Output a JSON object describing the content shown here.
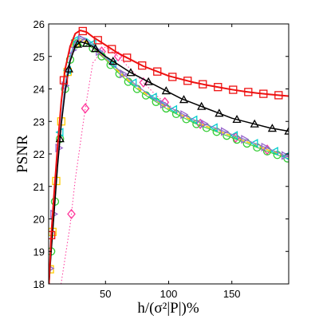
{
  "chart_data": {
    "type": "line",
    "title": "",
    "xlabel": "h/(σ²|P|)%",
    "ylabel": "PSNR",
    "xlim": [
      5,
      195
    ],
    "ylim": [
      18,
      26
    ],
    "xticks": [
      50,
      100,
      150
    ],
    "yticks": [
      18,
      19,
      20,
      21,
      22,
      23,
      24,
      25,
      26
    ],
    "grid": false,
    "legend": "none",
    "series": [
      {
        "color": "#ff3399",
        "marker": "diamond",
        "line": "dotted",
        "lw": 1,
        "x": [
          14,
          18,
          22,
          26,
          30,
          34,
          40,
          50,
          60,
          70,
          80,
          90,
          100,
          110,
          120,
          130,
          140,
          150,
          160,
          170,
          180,
          190
        ],
        "y": [
          17.8,
          18.8,
          19.8,
          21.2,
          22.3,
          23.4,
          24.8,
          25.3,
          25.0,
          24.6,
          24.2,
          23.8,
          23.5,
          23.25,
          23.0,
          22.85,
          22.7,
          22.55,
          22.4,
          22.25,
          22.1,
          21.95
        ],
        "marker_x": [
          23,
          34,
          47,
          60,
          80,
          97,
          125,
          153,
          178
        ]
      },
      {
        "color": "#33cc33",
        "marker": "circle",
        "line": "solid",
        "lw": 1,
        "x": [
          5,
          7,
          9,
          12,
          15,
          18,
          22,
          26,
          30,
          35,
          40,
          50,
          60,
          70,
          80,
          90,
          100,
          110,
          120,
          130,
          140,
          150,
          160,
          170,
          180,
          195
        ],
        "y": [
          17.8,
          19.0,
          20.0,
          21.6,
          22.9,
          24.0,
          24.9,
          25.35,
          25.45,
          25.4,
          25.25,
          24.9,
          24.5,
          24.15,
          23.85,
          23.6,
          23.35,
          23.15,
          22.95,
          22.8,
          22.65,
          22.5,
          22.35,
          22.2,
          22.05,
          21.85
        ],
        "marker_x": [
          5,
          7,
          10,
          14,
          18,
          22,
          27,
          33,
          40,
          47,
          54,
          61,
          68,
          75,
          82,
          90,
          98,
          106,
          114,
          122,
          130,
          138,
          146,
          154,
          162,
          170,
          178,
          186,
          194
        ]
      },
      {
        "color": "#ffcc00",
        "marker": "square",
        "line": "dashed",
        "lw": 1.5,
        "x": [
          5,
          7,
          9,
          12,
          15,
          18,
          22,
          26,
          30,
          35,
          40,
          50,
          60,
          70,
          80,
          90,
          100,
          110,
          120,
          130,
          140,
          150,
          160,
          170,
          180,
          195
        ],
        "y": [
          17.8,
          19.1,
          20.1,
          21.7,
          23.0,
          24.1,
          24.95,
          25.4,
          25.5,
          25.45,
          25.3,
          24.95,
          24.55,
          24.2,
          23.9,
          23.65,
          23.4,
          23.2,
          23.0,
          22.85,
          22.7,
          22.55,
          22.4,
          22.25,
          22.1,
          21.9
        ],
        "marker_x": [
          6,
          8,
          11,
          15,
          20,
          26
        ]
      },
      {
        "color": "#00cccc",
        "marker": "triangle-left",
        "line": "solid",
        "lw": 1,
        "x": [
          5,
          7,
          9,
          12,
          15,
          18,
          22,
          26,
          30,
          35,
          40,
          50,
          60,
          70,
          80,
          90,
          100,
          110,
          120,
          130,
          140,
          150,
          160,
          170,
          180,
          195
        ],
        "y": [
          17.8,
          19.2,
          20.2,
          21.8,
          23.1,
          24.15,
          25.0,
          25.5,
          25.6,
          25.55,
          25.4,
          25.0,
          24.6,
          24.25,
          23.95,
          23.7,
          23.45,
          23.25,
          23.05,
          22.9,
          22.75,
          22.6,
          22.45,
          22.3,
          22.15,
          21.9
        ],
        "marker_x": [
          14,
          20,
          26,
          40,
          56,
          72,
          88,
          104,
          120,
          136,
          152,
          168,
          184,
          193
        ]
      },
      {
        "color": "#9966cc",
        "marker": "triangle-right",
        "line": "solid",
        "lw": 1,
        "x": [
          5,
          7,
          9,
          12,
          15,
          18,
          22,
          26,
          30,
          35,
          40,
          50,
          60,
          70,
          80,
          90,
          100,
          110,
          120,
          130,
          140,
          150,
          160,
          170,
          180,
          195
        ],
        "y": [
          17.8,
          19.15,
          20.15,
          21.75,
          23.05,
          24.1,
          24.95,
          25.45,
          25.55,
          25.5,
          25.35,
          24.95,
          24.6,
          24.25,
          23.95,
          23.65,
          23.45,
          23.25,
          23.05,
          22.9,
          22.75,
          22.6,
          22.45,
          22.3,
          22.15,
          21.9
        ],
        "marker_x": [
          6,
          9,
          13,
          18,
          24,
          31,
          45,
          64,
          96,
          112,
          128,
          144,
          160,
          176,
          192
        ]
      },
      {
        "color": "#000000",
        "marker": "triangle-up",
        "line": "solid",
        "lw": 1.5,
        "x": [
          5,
          7,
          9,
          12,
          15,
          18,
          22,
          26,
          30,
          35,
          40,
          50,
          60,
          70,
          80,
          90,
          100,
          110,
          120,
          130,
          140,
          150,
          160,
          170,
          180,
          195
        ],
        "y": [
          17.8,
          19.0,
          20.0,
          21.6,
          22.9,
          23.9,
          24.85,
          25.3,
          25.45,
          25.4,
          25.3,
          25.0,
          24.75,
          24.5,
          24.3,
          24.1,
          23.9,
          23.7,
          23.55,
          23.4,
          23.25,
          23.1,
          23.0,
          22.9,
          22.8,
          22.7
        ],
        "marker_x": [
          14,
          21,
          28,
          35,
          42,
          56,
          70,
          84,
          98,
          112,
          126,
          140,
          154,
          168,
          182,
          195
        ]
      },
      {
        "color": "#ee1111",
        "marker": "square",
        "line": "solid",
        "lw": 2,
        "x": [
          5,
          7,
          9,
          12,
          15,
          18,
          22,
          26,
          30,
          35,
          40,
          50,
          60,
          70,
          80,
          90,
          100,
          110,
          120,
          130,
          140,
          150,
          160,
          170,
          180,
          195
        ],
        "y": [
          17.8,
          19.5,
          20.6,
          22.2,
          23.6,
          24.6,
          25.3,
          25.7,
          25.8,
          25.75,
          25.6,
          25.35,
          25.1,
          24.9,
          24.7,
          24.55,
          24.4,
          24.3,
          24.2,
          24.12,
          24.05,
          23.98,
          23.92,
          23.87,
          23.83,
          23.78
        ],
        "marker_x": [
          7,
          17,
          32,
          44,
          55,
          67,
          79,
          91,
          103,
          115,
          127,
          139,
          151,
          163,
          175,
          187
        ]
      }
    ]
  }
}
